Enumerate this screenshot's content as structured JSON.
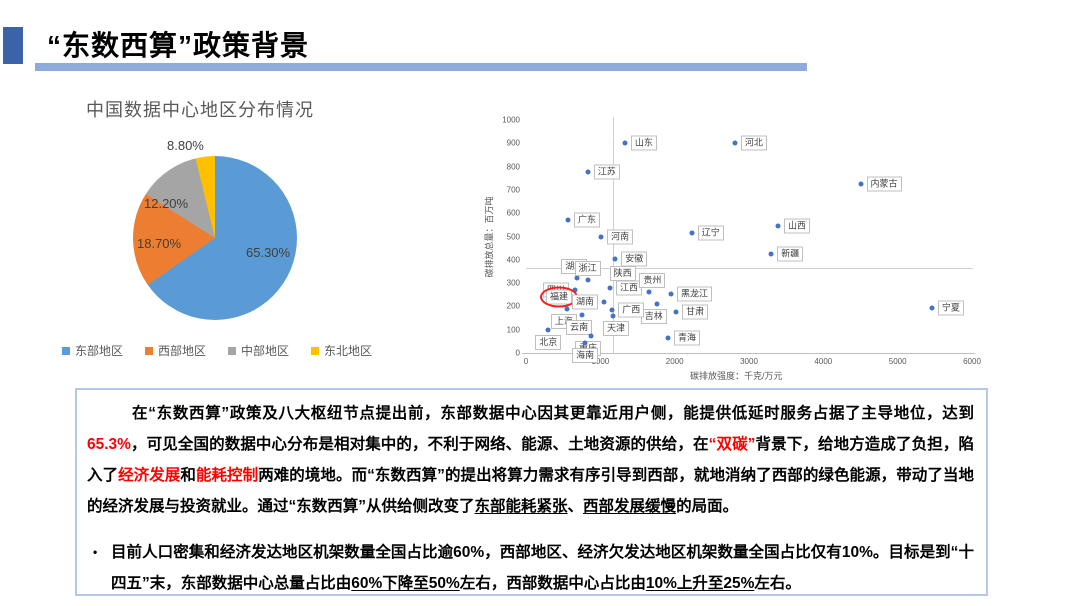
{
  "header": {
    "title": "“东数西算”政策背景"
  },
  "chart_data": [
    {
      "type": "pie",
      "title": "中国数据中心地区分布情况",
      "categories": [
        "东部地区",
        "西部地区",
        "中部地区",
        "东北地区"
      ],
      "values": [
        65.3,
        18.7,
        12.2,
        8.8
      ],
      "point_labels": [
        "65.30%",
        "18.70%",
        "12.20%",
        "8.80%"
      ],
      "colors": [
        "#5B9BD5",
        "#ED7D31",
        "#A5A5A5",
        "#FFC000"
      ],
      "legend_position": "bottom"
    },
    {
      "type": "scatter",
      "xlabel": "碳排放强度：千克/万元",
      "ylabel": "碳排放总量：百万吨",
      "xlim": [
        0,
        6000
      ],
      "xtick": 1000,
      "ylim": [
        0,
        1000
      ],
      "ytick": 100,
      "ref_line_x": 1170,
      "ref_line_y": 365,
      "dot_color": "#4472C4",
      "points": [
        {
          "name": "山东",
          "x": 1330,
          "y": 900,
          "pos": "right"
        },
        {
          "name": "河北",
          "x": 2810,
          "y": 900,
          "pos": "right"
        },
        {
          "name": "江苏",
          "x": 830,
          "y": 775,
          "pos": "right"
        },
        {
          "name": "内蒙古",
          "x": 4500,
          "y": 725,
          "pos": "right"
        },
        {
          "name": "广东",
          "x": 565,
          "y": 570,
          "pos": "right"
        },
        {
          "name": "山西",
          "x": 3390,
          "y": 545,
          "pos": "right"
        },
        {
          "name": "辽宁",
          "x": 2230,
          "y": 515,
          "pos": "right"
        },
        {
          "name": "河南",
          "x": 1010,
          "y": 500,
          "pos": "right"
        },
        {
          "name": "新疆",
          "x": 3300,
          "y": 425,
          "pos": "right"
        },
        {
          "name": "安徽",
          "x": 1200,
          "y": 405,
          "pos": "right"
        },
        {
          "name": "湖北",
          "x": 690,
          "y": 320,
          "pos": "above-left"
        },
        {
          "name": "浙江",
          "x": 830,
          "y": 315,
          "pos": "above"
        },
        {
          "name": "陕西",
          "x": 1260,
          "y": 290,
          "pos": "above-right"
        },
        {
          "name": "江西",
          "x": 1130,
          "y": 280,
          "pos": "right"
        },
        {
          "name": "四川",
          "x": 660,
          "y": 270,
          "pos": "left"
        },
        {
          "name": "贵州",
          "x": 1660,
          "y": 260,
          "pos": "above-right"
        },
        {
          "name": "黑龙江",
          "x": 1950,
          "y": 255,
          "pos": "right"
        },
        {
          "name": "福建",
          "x": 700,
          "y": 240,
          "pos": "left",
          "circled": true
        },
        {
          "name": "湖南",
          "x": 1050,
          "y": 220,
          "pos": "left"
        },
        {
          "name": "吉林",
          "x": 1760,
          "y": 210,
          "pos": "below-left"
        },
        {
          "name": "宁夏",
          "x": 5460,
          "y": 195,
          "pos": "right"
        },
        {
          "name": "上海",
          "x": 550,
          "y": 190,
          "pos": "below-left"
        },
        {
          "name": "广西",
          "x": 1160,
          "y": 185,
          "pos": "right"
        },
        {
          "name": "甘肃",
          "x": 2020,
          "y": 175,
          "pos": "right"
        },
        {
          "name": "云南",
          "x": 755,
          "y": 165,
          "pos": "below-left"
        },
        {
          "name": "天津",
          "x": 1170,
          "y": 160,
          "pos": "below-right"
        },
        {
          "name": "北京",
          "x": 300,
          "y": 100,
          "pos": "below"
        },
        {
          "name": "重庆",
          "x": 875,
          "y": 75,
          "pos": "below-left"
        },
        {
          "name": "青海",
          "x": 1910,
          "y": 65,
          "pos": "right"
        },
        {
          "name": "海南",
          "x": 795,
          "y": 45,
          "pos": "below"
        }
      ]
    }
  ],
  "note": {
    "para1_segments": [
      {
        "t": "在“东数西算”政策及八大枢纽节点提出前，东部数据中心因其更靠近用户侧，能提供低延时服务占据了主导地位，达到",
        "s": "n"
      },
      {
        "t": "65.3%",
        "s": "red"
      },
      {
        "t": "，可见全国的数据中心分布是相对集中的，不利于网络、能源、土地资源的供给，在",
        "s": "n"
      },
      {
        "t": "“双碳”",
        "s": "red"
      },
      {
        "t": "背景下，给地方造成了负担，陷入了",
        "s": "n"
      },
      {
        "t": "经济发展",
        "s": "red"
      },
      {
        "t": "和",
        "s": "n"
      },
      {
        "t": "能耗控制",
        "s": "red"
      },
      {
        "t": "两难的境地。而“东数西算”的提出将算力需求有序引导到西部，就地消纳了西部的绿色能源，带动了当地的经济发展与投资就业。通过“东数西算”从供给侧改变了",
        "s": "n"
      },
      {
        "t": "东部能耗紧张",
        "s": "u"
      },
      {
        "t": "、",
        "s": "n"
      },
      {
        "t": "西部发展缓慢",
        "s": "u"
      },
      {
        "t": "的局面。",
        "s": "n"
      }
    ],
    "bullet_glyph": "•",
    "bullet_segments": [
      {
        "t": "目前人口密集和经济发达地区机架数量全国占比逾60%，西部地区、经济欠发达地区机架数量全国占比仅有10%。目标是到“十四五”末，东部数据中心总量占比由",
        "s": "n"
      },
      {
        "t": "60%下降至50%",
        "s": "u"
      },
      {
        "t": "左右，西部数据中心占比由",
        "s": "n"
      },
      {
        "t": "10%上升至25%",
        "s": "u"
      },
      {
        "t": "左右。",
        "s": "n"
      }
    ]
  },
  "colors": {
    "header_accent": "#3B63A8",
    "header_bar": "#8FAADC",
    "note_border": "#B4C7E7",
    "highlight_red": "#FF0000",
    "circle_red": "#FF1A1A"
  }
}
